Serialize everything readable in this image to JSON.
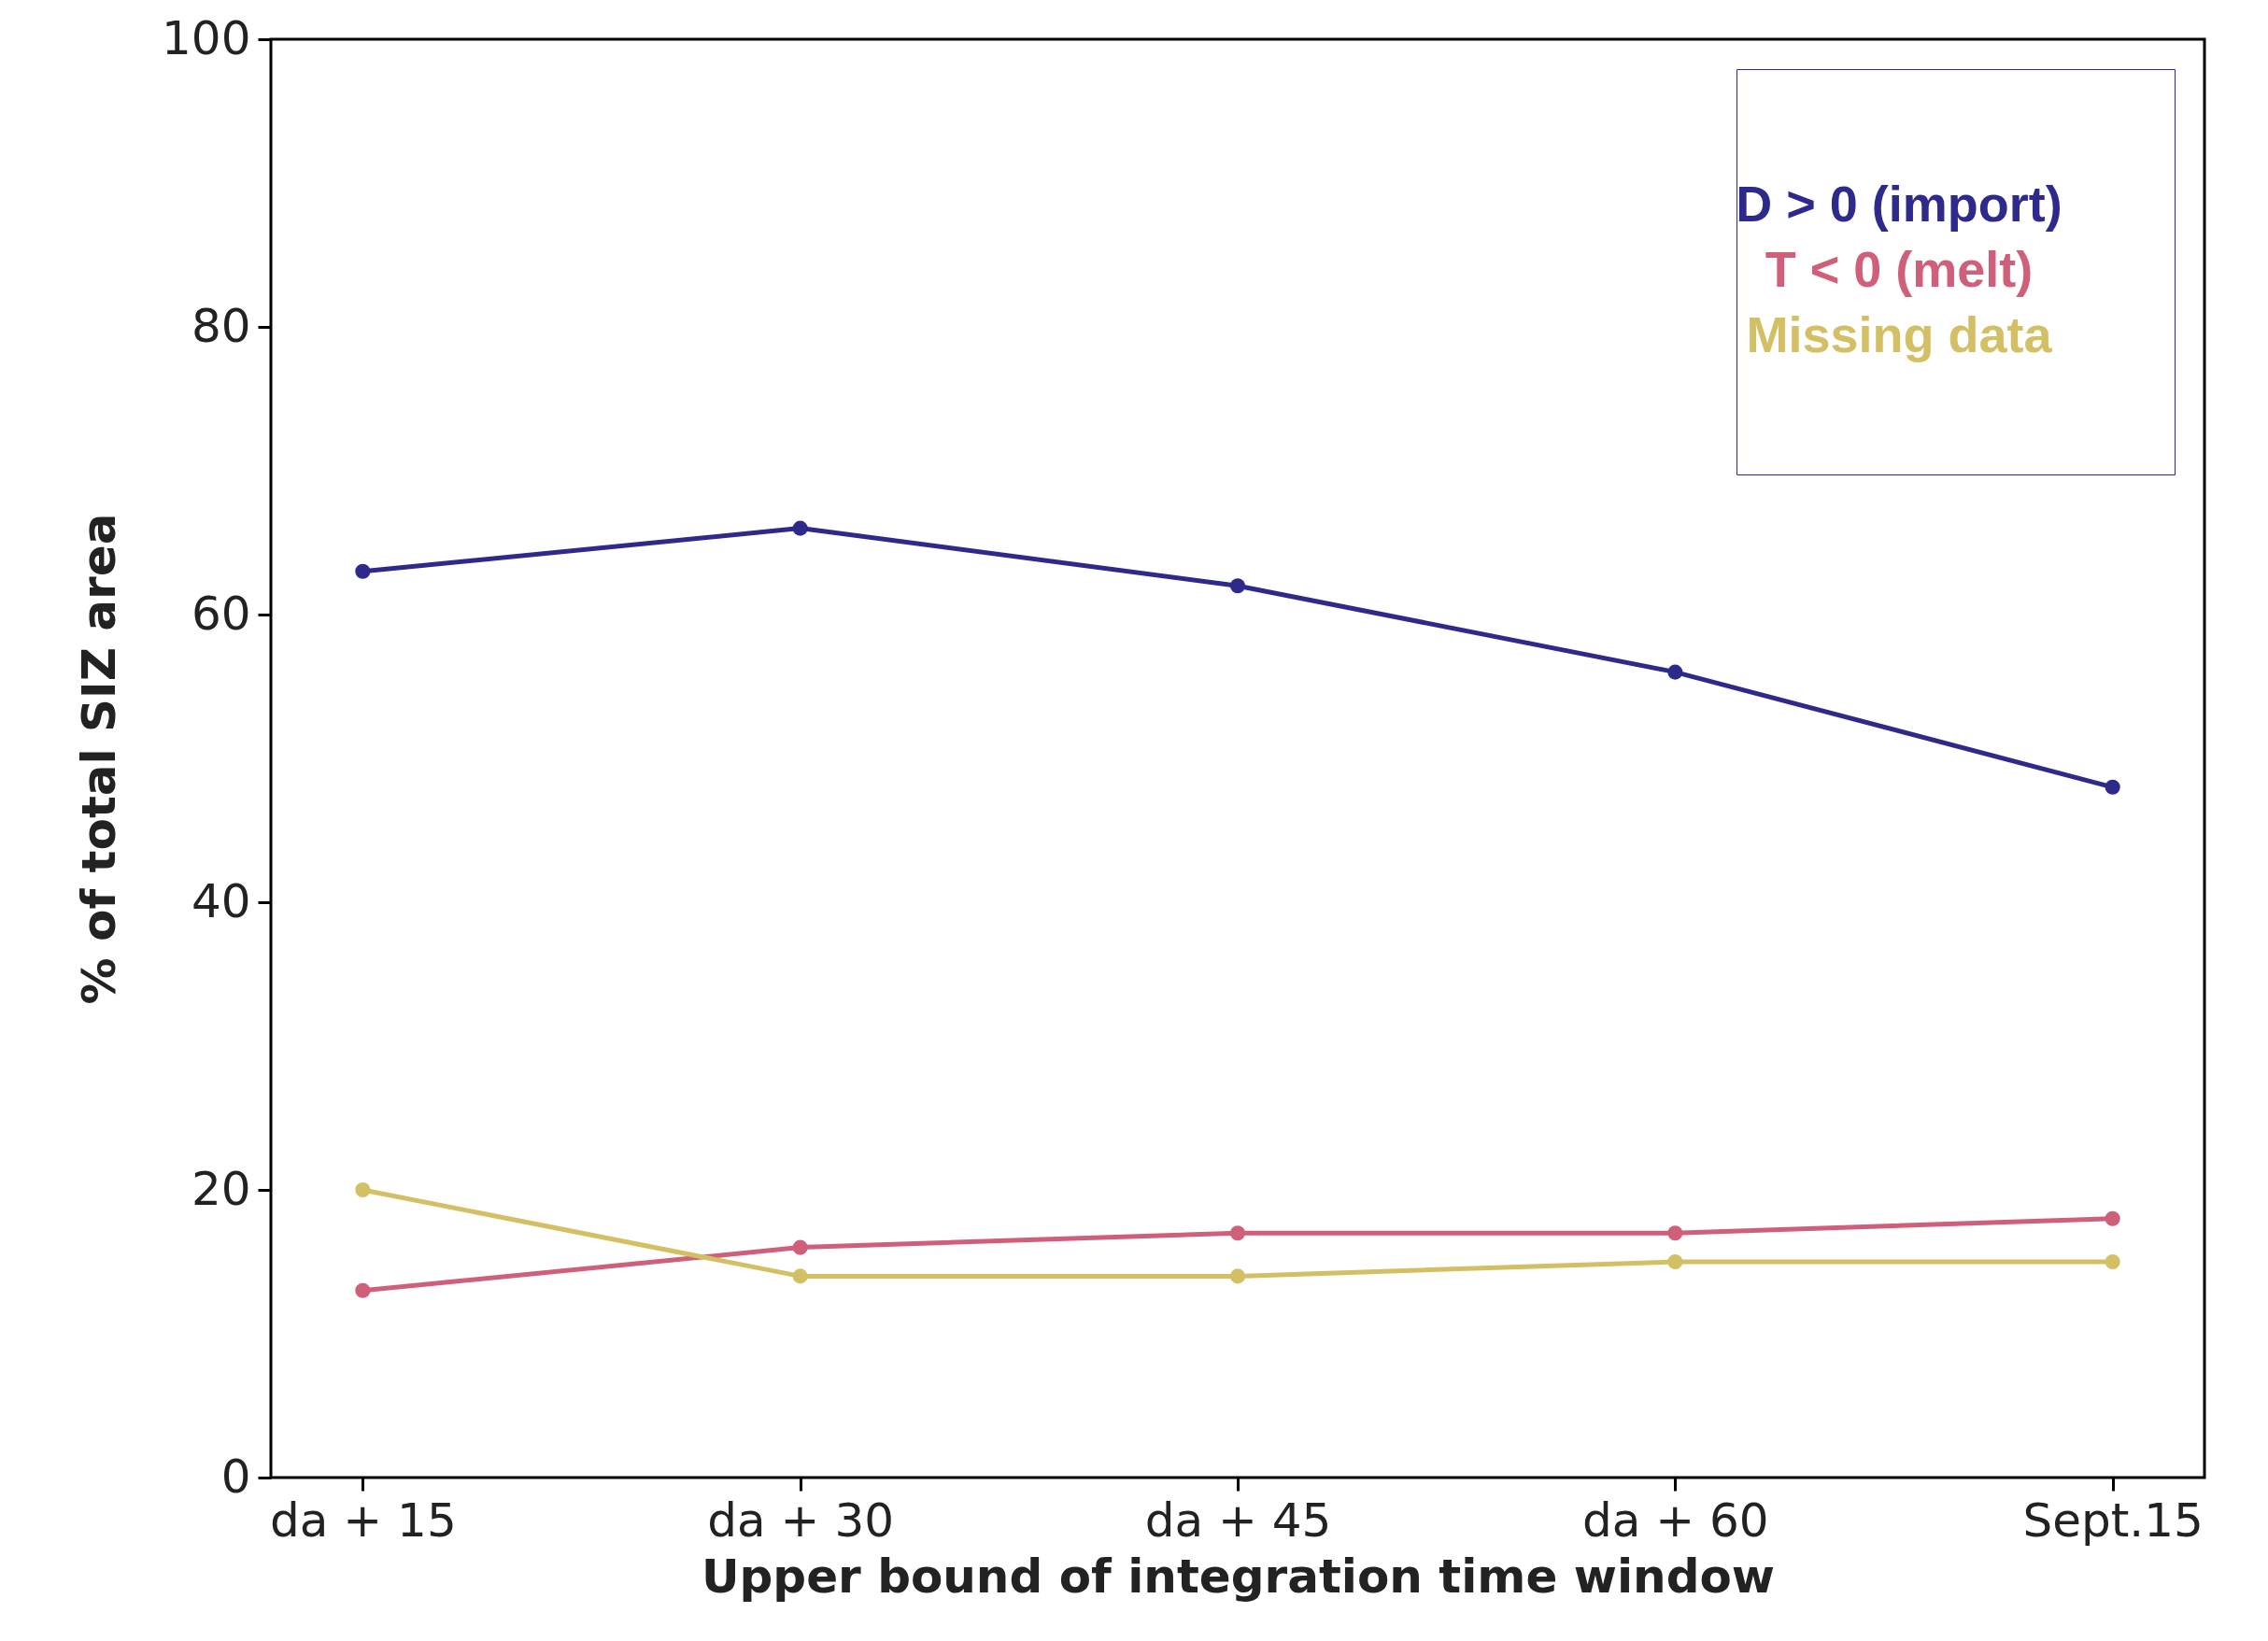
{
  "chart_data": {
    "type": "line",
    "xlabel": "Upper bound of integration time window",
    "ylabel": "% of total SIZ area",
    "categories": [
      "da + 15",
      "da + 30",
      "da + 45",
      "da + 60",
      "Sept.15"
    ],
    "series": [
      {
        "name": "D > 0 (import)",
        "color": "#2e2a8c",
        "values": [
          63,
          66,
          62,
          56,
          48
        ]
      },
      {
        "name": "T < 0 (melt)",
        "color": "#d0607a",
        "values": [
          13,
          16,
          17,
          17,
          18
        ]
      },
      {
        "name": "Missing data",
        "color": "#d4c064",
        "values": [
          20,
          14,
          14,
          15,
          15
        ]
      }
    ],
    "ylim": [
      0,
      100
    ],
    "yticks": [
      0,
      20,
      40,
      60,
      80,
      100
    ],
    "grid": false,
    "legend": "top right",
    "marker": "circle",
    "line_style": "solid"
  }
}
